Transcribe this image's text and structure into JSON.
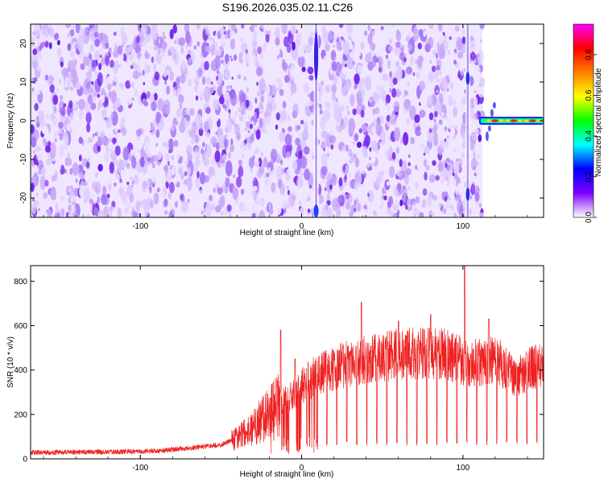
{
  "title": "S196.2026.035.02.11.C26",
  "colors": {
    "noise_light": "#efe6ff",
    "noise_mid": "#c8a8f8",
    "noise_dark": "#7a28f0",
    "snr_line": "#ee2222",
    "axes": "#000000"
  },
  "chart_data": [
    {
      "type": "heatmap",
      "name": "spectrogram",
      "xlabel": "Height of straight line (km)",
      "ylabel": "Frequency (Hz)",
      "xlim": [
        -168,
        150
      ],
      "ylim": [
        -25,
        25
      ],
      "xticks": [
        -100,
        0,
        100
      ],
      "xtick_labels": [
        "-100",
        "0",
        "100"
      ],
      "yticks": [
        -20,
        -10,
        0,
        10,
        20
      ],
      "ytick_labels": [
        "-20",
        "-10",
        "0",
        "10",
        "20"
      ],
      "noise_region_x": [
        -168,
        112
      ],
      "vertical_streaks_x": [
        9,
        103
      ],
      "signal": {
        "x_range": [
          111,
          150
        ],
        "frequency": 0.0
      },
      "colorbar": {
        "label": "Normalized spectral amplitude",
        "range": [
          0,
          0.95
        ],
        "ticks": [
          0,
          0.2,
          0.4,
          0.6,
          0.8
        ],
        "tick_labels": [
          "0.0",
          "0.2",
          "0.4",
          "0.6",
          "0.8"
        ],
        "stops": [
          "#ffffff",
          "#7f00ff",
          "#0000ff",
          "#00ffff",
          "#00ff00",
          "#ffff00",
          "#ff7f00",
          "#ff0000",
          "#ff00ff"
        ]
      }
    },
    {
      "type": "line",
      "name": "snr",
      "xlabel": "Height of straight line (km)",
      "ylabel": "SNR (10 * v/v)",
      "xlim": [
        -168,
        150
      ],
      "ylim": [
        0,
        870
      ],
      "xticks": [
        -100,
        0,
        100
      ],
      "xtick_labels": [
        "-100",
        "0",
        "100"
      ],
      "yticks": [
        0,
        200,
        400,
        600,
        800
      ],
      "ytick_labels": [
        "0",
        "200",
        "400",
        "600",
        "800"
      ],
      "profile_x": [
        -168,
        -120,
        -90,
        -70,
        -50,
        -40,
        -30,
        -22,
        -15,
        -8,
        0,
        10,
        20,
        30,
        40,
        50,
        60,
        70,
        80,
        90,
        100,
        110,
        120,
        127,
        133,
        140,
        150
      ],
      "profile_y": [
        25,
        28,
        32,
        45,
        60,
        90,
        140,
        200,
        240,
        270,
        330,
        380,
        410,
        430,
        450,
        460,
        470,
        475,
        480,
        470,
        440,
        430,
        450,
        400,
        360,
        400,
        430
      ],
      "dropout_every_km": 6.2,
      "dropout_start_km": 3,
      "dropout_level": 60,
      "peaks": [
        {
          "x": -13,
          "y": 580
        },
        {
          "x": -4,
          "y": 450
        },
        {
          "x": 37,
          "y": 705
        },
        {
          "x": 60,
          "y": 620
        },
        {
          "x": 80,
          "y": 650
        },
        {
          "x": 101,
          "y": 870
        },
        {
          "x": 116,
          "y": 630
        }
      ]
    }
  ]
}
